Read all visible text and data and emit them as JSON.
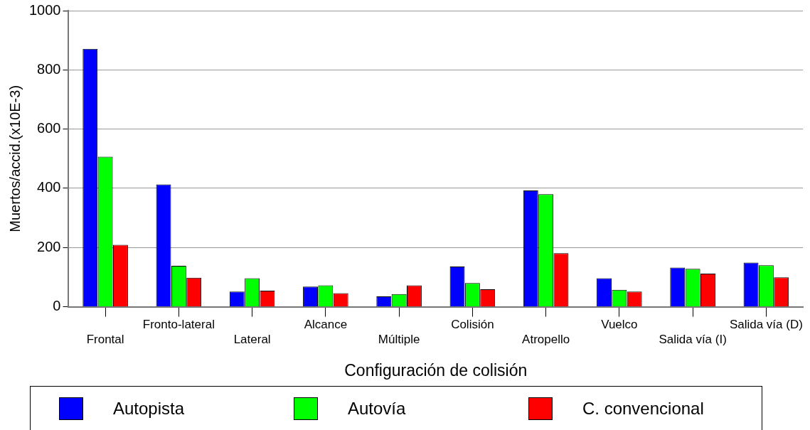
{
  "chart_data": {
    "type": "bar",
    "xlabel": "Configuración de colisión",
    "ylabel": "Muertos/accid.(x10E-3)",
    "categories": [
      "Frontal",
      "Fronto-lateral",
      "Lateral",
      "Alcance",
      "Múltiple",
      "Colisión",
      "Atropello",
      "Vuelco",
      "Salida vía (I)",
      "Salida vía (D)"
    ],
    "series": [
      {
        "name": "Autopista",
        "color": "#0000ff",
        "values": [
          871,
          413,
          51,
          68,
          35,
          136,
          393,
          96,
          132,
          149
        ]
      },
      {
        "name": "Autovía",
        "color": "#00ff00",
        "values": [
          507,
          138,
          96,
          72,
          43,
          80,
          380,
          57,
          128,
          140
        ]
      },
      {
        "name": "C. convencional",
        "color": "#ff0000",
        "values": [
          209,
          98,
          54,
          46,
          72,
          59,
          181,
          51,
          112,
          99
        ]
      }
    ],
    "ylim": [
      0,
      1000
    ],
    "yticks": [
      0,
      200,
      400,
      600,
      800,
      1000
    ],
    "grid": "y",
    "legend": "bottom"
  }
}
